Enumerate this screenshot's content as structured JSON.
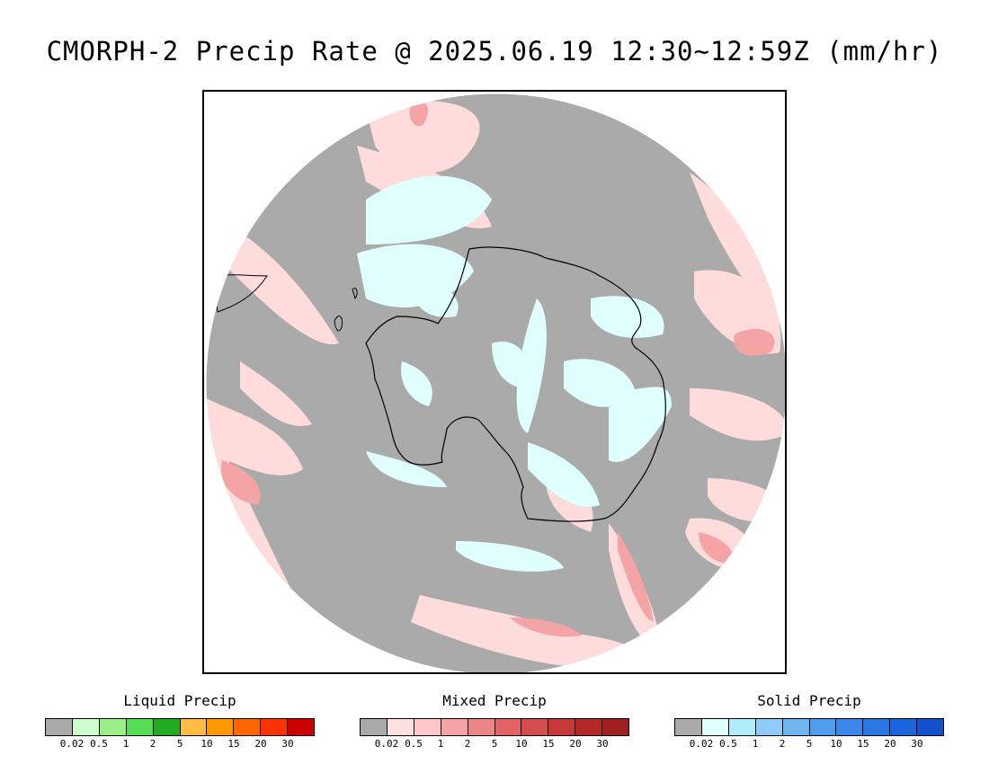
{
  "title": "CMORPH-2 Precip Rate @ 2025.06.19 12:30~12:59Z (mm/hr)",
  "map": {
    "projection": "south-polar-stereographic",
    "continent": "Antarctica",
    "background_color": "#aaaaaa",
    "frame_color": "#000000",
    "coastline_color": "#000000"
  },
  "legends": [
    {
      "id": "liquid",
      "title": "Liquid Precip",
      "colors": [
        "#aaaaaa",
        "#ccffcc",
        "#99ee88",
        "#55dd55",
        "#22aa22",
        "#ffbb44",
        "#ff9900",
        "#ff6600",
        "#ff3300",
        "#cc0000"
      ],
      "ticks": [
        "0.02",
        "0.5",
        "1",
        "2",
        "5",
        "10",
        "15",
        "20",
        "30"
      ]
    },
    {
      "id": "mixed",
      "title": "Mixed Precip",
      "colors": [
        "#aaaaaa",
        "#ffe0e0",
        "#ffc8c8",
        "#f4a4a4",
        "#ec8686",
        "#e06464",
        "#d44c4c",
        "#c83838",
        "#b42828",
        "#a02020"
      ],
      "ticks": [
        "0.02",
        "0.5",
        "1",
        "2",
        "5",
        "10",
        "15",
        "20",
        "30"
      ]
    },
    {
      "id": "solid",
      "title": "Solid Precip",
      "colors": [
        "#aaaaaa",
        "#e0ffff",
        "#aeeefc",
        "#90ccf8",
        "#70b4f0",
        "#509cf0",
        "#3a88ec",
        "#2a76e4",
        "#1a64dc",
        "#1052cc"
      ],
      "ticks": [
        "0.02",
        "0.5",
        "1",
        "2",
        "5",
        "10",
        "15",
        "20",
        "30"
      ]
    }
  ]
}
